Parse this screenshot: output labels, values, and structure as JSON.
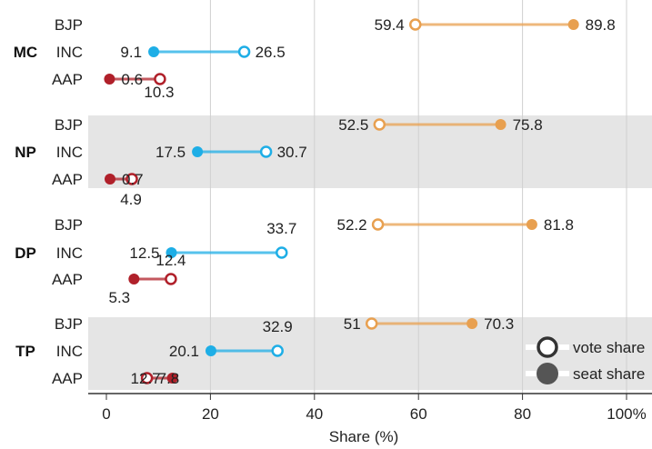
{
  "chart_data": {
    "type": "dumbbell",
    "xlabel": "Share (%)",
    "xlim": [
      0,
      100
    ],
    "x_ticks": [
      "0",
      "20",
      "40",
      "60",
      "80",
      "100%"
    ],
    "x_tick_values": [
      0,
      20,
      40,
      60,
      80,
      100
    ],
    "grid": "vertical",
    "legend": {
      "position": "bottom-right",
      "vote_label": "vote share",
      "seat_label": "seat share"
    },
    "colors": {
      "BJP": "#E8A050",
      "INC": "#1EAEE6",
      "AAP": "#B0202A",
      "band": "#E5E5E5",
      "grid": "#D0D0D0"
    },
    "groups": [
      {
        "name": "MC",
        "shaded": false,
        "rows": [
          {
            "party": "BJP",
            "vote": 59.4,
            "seat": 89.8,
            "vote_label": "59.4",
            "seat_label": "89.8"
          },
          {
            "party": "INC",
            "vote": 26.5,
            "seat": 9.1,
            "vote_label": "26.5",
            "seat_label": "9.1"
          },
          {
            "party": "AAP",
            "vote": 10.3,
            "seat": 0.6,
            "vote_label": "10.3",
            "seat_label": "0.6"
          }
        ]
      },
      {
        "name": "NP",
        "shaded": true,
        "rows": [
          {
            "party": "BJP",
            "vote": 52.5,
            "seat": 75.8,
            "vote_label": "52.5",
            "seat_label": "75.8"
          },
          {
            "party": "INC",
            "vote": 30.7,
            "seat": 17.5,
            "vote_label": "30.7",
            "seat_label": "17.5"
          },
          {
            "party": "AAP",
            "vote": 4.9,
            "seat": 0.7,
            "vote_label": "4.9",
            "seat_label": "0.7"
          }
        ]
      },
      {
        "name": "DP",
        "shaded": false,
        "rows": [
          {
            "party": "BJP",
            "vote": 52.2,
            "seat": 81.8,
            "vote_label": "52.2",
            "seat_label": "81.8"
          },
          {
            "party": "INC",
            "vote": 33.7,
            "seat": 12.5,
            "vote_label": "33.7",
            "seat_label": "12.5"
          },
          {
            "party": "AAP",
            "vote": 12.4,
            "seat": 5.3,
            "vote_label": "12.4",
            "seat_label": "5.3"
          }
        ]
      },
      {
        "name": "TP",
        "shaded": true,
        "rows": [
          {
            "party": "BJP",
            "vote": 51,
            "seat": 70.3,
            "vote_label": "51",
            "seat_label": "70.3"
          },
          {
            "party": "INC",
            "vote": 32.9,
            "seat": 20.1,
            "vote_label": "32.9",
            "seat_label": "20.1"
          },
          {
            "party": "AAP",
            "vote": 7.8,
            "seat": 12.7,
            "vote_label": "7.8",
            "seat_label": "12.7"
          }
        ]
      }
    ]
  }
}
